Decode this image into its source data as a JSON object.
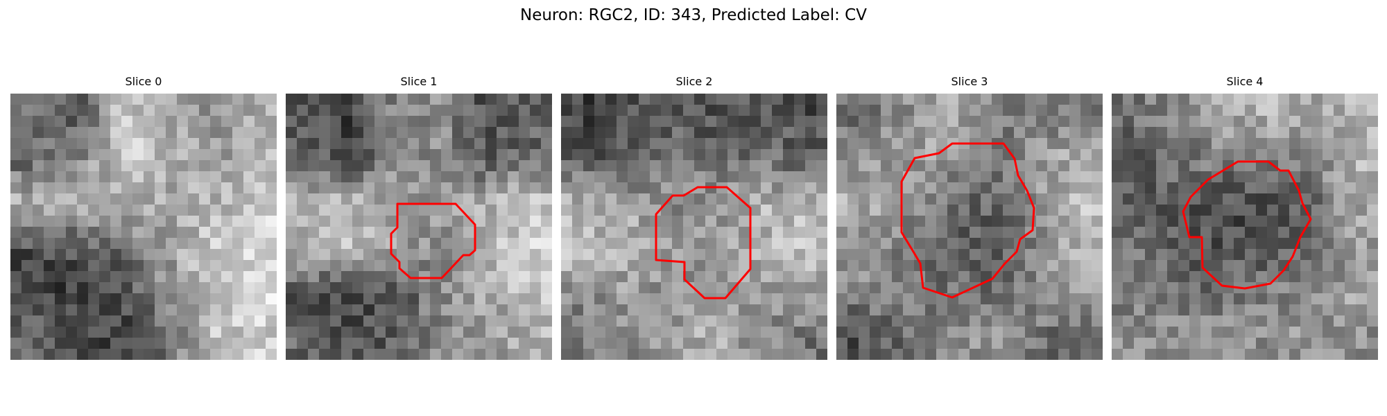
{
  "figure": {
    "title": "Neuron: RGC2, ID: 343, Predicted Label: CV"
  },
  "panels": [
    {
      "title": "Slice 0",
      "outline": false,
      "seed": 11
    },
    {
      "title": "Slice 1",
      "outline": true,
      "seed": 23
    },
    {
      "title": "Slice 2",
      "outline": true,
      "seed": 37
    },
    {
      "title": "Slice 3",
      "outline": true,
      "seed": 41
    },
    {
      "title": "Slice 4",
      "outline": true,
      "seed": 53
    }
  ],
  "colors": {
    "background": "#ffffff",
    "outline": "#ff0000",
    "colormap": "gray"
  }
}
